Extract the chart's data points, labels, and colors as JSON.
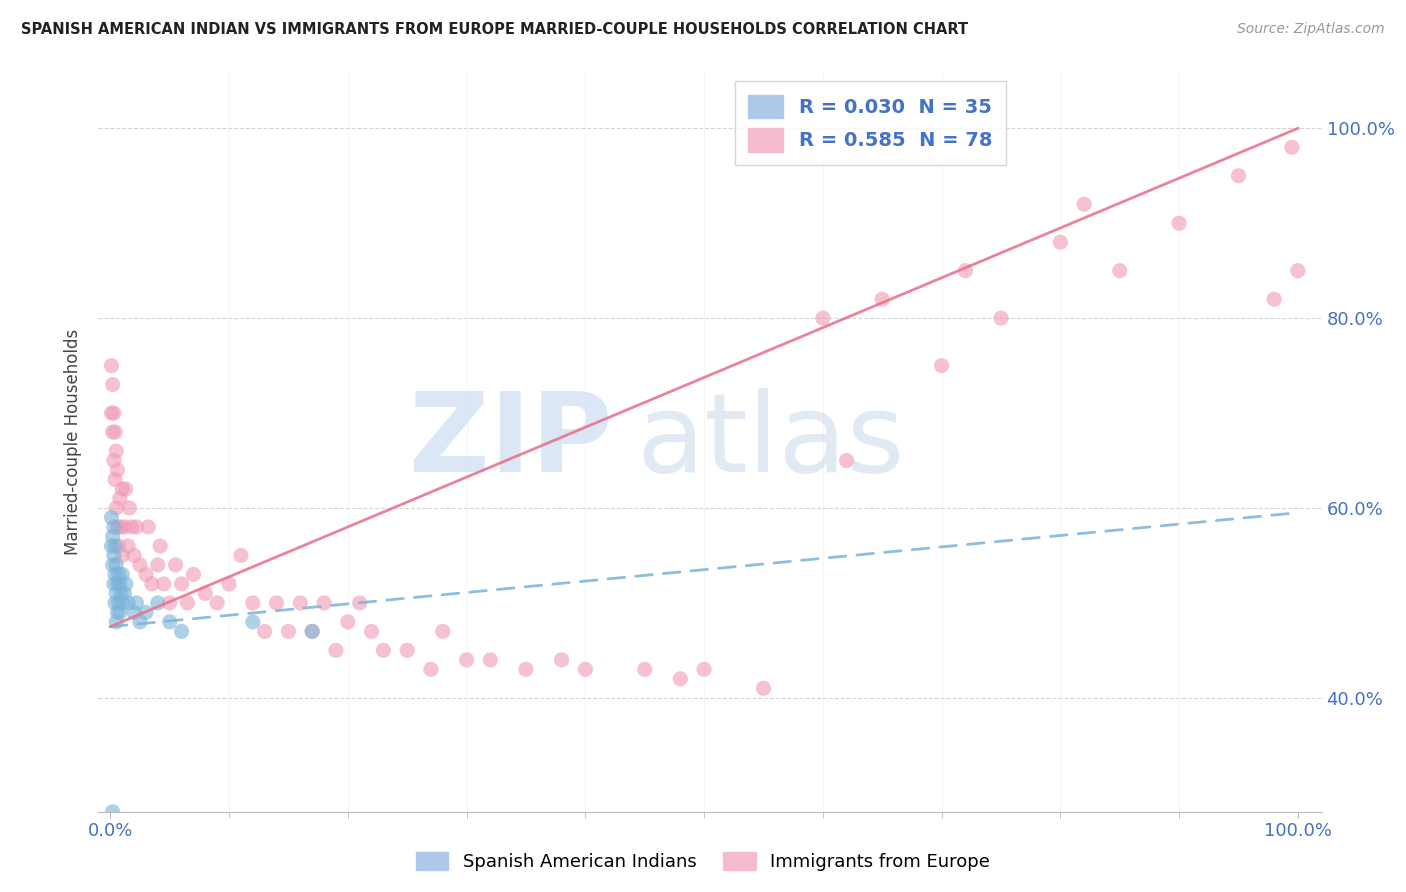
{
  "title": "SPANISH AMERICAN INDIAN VS IMMIGRANTS FROM EUROPE MARRIED-COUPLE HOUSEHOLDS CORRELATION CHART",
  "source": "Source: ZipAtlas.com",
  "ylabel": "Married-couple Households",
  "y_ticks": [
    "40.0%",
    "60.0%",
    "80.0%",
    "100.0%"
  ],
  "y_tick_vals": [
    0.4,
    0.6,
    0.8,
    1.0
  ],
  "legend_entries": [
    {
      "label": "R = 0.030  N = 35",
      "color": "#adc8e8"
    },
    {
      "label": "R = 0.585  N = 78",
      "color": "#f5bcd0"
    }
  ],
  "legend_label1": "Spanish American Indians",
  "legend_label2": "Immigrants from Europe",
  "blue_scatter_x": [
    0.001,
    0.001,
    0.002,
    0.002,
    0.003,
    0.003,
    0.003,
    0.004,
    0.004,
    0.004,
    0.005,
    0.005,
    0.005,
    0.006,
    0.006,
    0.007,
    0.007,
    0.008,
    0.008,
    0.009,
    0.01,
    0.01,
    0.012,
    0.013,
    0.015,
    0.02,
    0.022,
    0.025,
    0.03,
    0.04,
    0.05,
    0.06,
    0.12,
    0.17,
    0.002
  ],
  "blue_scatter_y": [
    0.56,
    0.59,
    0.54,
    0.57,
    0.52,
    0.55,
    0.58,
    0.5,
    0.53,
    0.56,
    0.48,
    0.51,
    0.54,
    0.49,
    0.52,
    0.5,
    0.53,
    0.49,
    0.52,
    0.51,
    0.5,
    0.53,
    0.51,
    0.52,
    0.5,
    0.49,
    0.5,
    0.48,
    0.49,
    0.5,
    0.48,
    0.47,
    0.48,
    0.47,
    0.28
  ],
  "pink_scatter_x": [
    0.001,
    0.001,
    0.002,
    0.002,
    0.003,
    0.003,
    0.004,
    0.004,
    0.005,
    0.005,
    0.006,
    0.006,
    0.007,
    0.008,
    0.009,
    0.01,
    0.01,
    0.012,
    0.013,
    0.015,
    0.016,
    0.018,
    0.02,
    0.022,
    0.025,
    0.03,
    0.032,
    0.035,
    0.04,
    0.042,
    0.045,
    0.05,
    0.055,
    0.06,
    0.065,
    0.07,
    0.08,
    0.09,
    0.1,
    0.11,
    0.12,
    0.13,
    0.14,
    0.15,
    0.16,
    0.17,
    0.18,
    0.19,
    0.2,
    0.21,
    0.22,
    0.23,
    0.25,
    0.27,
    0.28,
    0.3,
    0.32,
    0.35,
    0.38,
    0.4,
    0.45,
    0.48,
    0.5,
    0.55,
    0.6,
    0.62,
    0.65,
    0.7,
    0.72,
    0.75,
    0.8,
    0.82,
    0.85,
    0.9,
    0.95,
    0.98,
    0.995,
    1.0
  ],
  "pink_scatter_y": [
    0.7,
    0.75,
    0.68,
    0.73,
    0.65,
    0.7,
    0.63,
    0.68,
    0.6,
    0.66,
    0.58,
    0.64,
    0.56,
    0.61,
    0.58,
    0.55,
    0.62,
    0.58,
    0.62,
    0.56,
    0.6,
    0.58,
    0.55,
    0.58,
    0.54,
    0.53,
    0.58,
    0.52,
    0.54,
    0.56,
    0.52,
    0.5,
    0.54,
    0.52,
    0.5,
    0.53,
    0.51,
    0.5,
    0.52,
    0.55,
    0.5,
    0.47,
    0.5,
    0.47,
    0.5,
    0.47,
    0.5,
    0.45,
    0.48,
    0.5,
    0.47,
    0.45,
    0.45,
    0.43,
    0.47,
    0.44,
    0.44,
    0.43,
    0.44,
    0.43,
    0.43,
    0.42,
    0.43,
    0.41,
    0.8,
    0.65,
    0.82,
    0.75,
    0.85,
    0.8,
    0.88,
    0.92,
    0.85,
    0.9,
    0.95,
    0.82,
    0.98,
    0.85
  ],
  "blue_line": {
    "x0": 0.0,
    "x1": 1.0,
    "y0": 0.475,
    "y1": 0.595
  },
  "pink_line": {
    "x0": 0.0,
    "x1": 1.0,
    "y0": 0.475,
    "y1": 1.0
  },
  "xlim": [
    -0.01,
    1.02
  ],
  "ylim": [
    0.28,
    1.06
  ],
  "bg_color": "#ffffff",
  "grid_color": "#d0d0d0",
  "scatter_blue_color": "#7ab3d9",
  "scatter_pink_color": "#f09ab5",
  "line_blue_color": "#7ab3d9",
  "line_pink_color": "#e8758f"
}
